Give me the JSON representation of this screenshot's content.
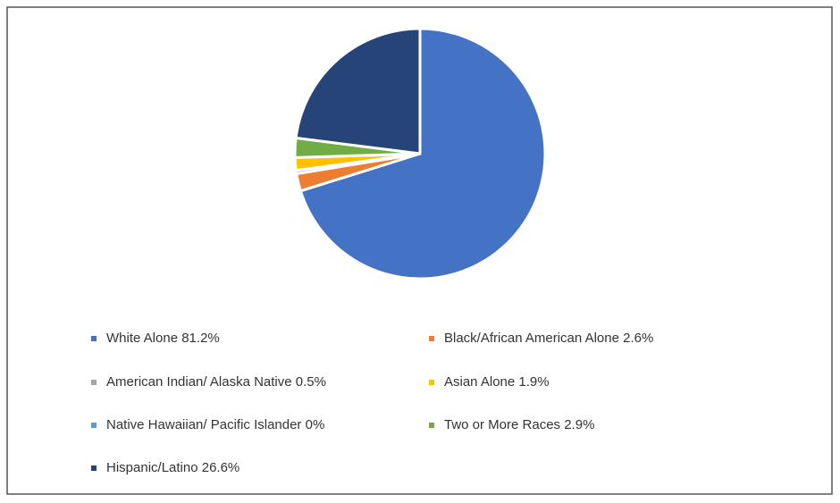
{
  "chart_data": {
    "type": "pie",
    "categories": [
      "White Alone",
      "Black/African American Alone",
      "American Indian/ Alaska Native",
      "Asian Alone",
      "Native Hawaiian/ Pacific Islander",
      "Two or More Races",
      "Hispanic/Latino"
    ],
    "values": [
      81.2,
      2.6,
      0.5,
      1.9,
      0,
      2.9,
      26.6
    ],
    "value_labels": [
      "81.2%",
      "2.6%",
      "0.5%",
      "1.9%",
      "0%",
      "2.9%",
      "26.6%"
    ],
    "colors": [
      "#4472c4",
      "#ed7d31",
      "#a5a5a5",
      "#ffc000",
      "#5b9bd5",
      "#70ad47",
      "#264478"
    ]
  }
}
